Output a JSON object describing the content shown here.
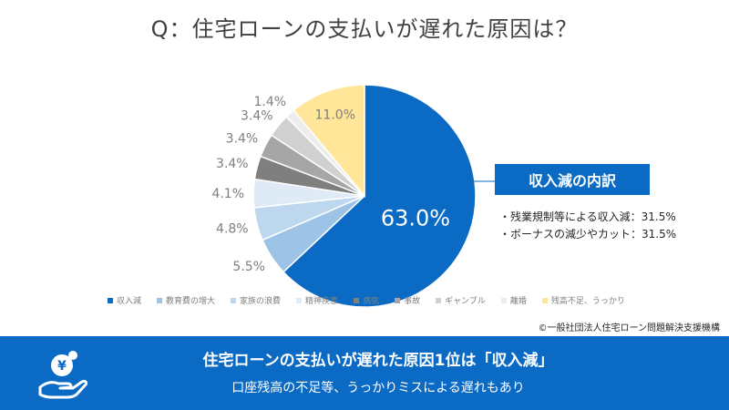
{
  "title": "Q：住宅ローンの支払いが遅れた原因は？",
  "chart_data": {
    "type": "pie",
    "title": "Q：住宅ローンの支払いが遅れた原因は？",
    "categories": [
      "収入減",
      "教育費の増大",
      "家族の浪費",
      "精神疾患",
      "病気",
      "事故",
      "ギャンブル",
      "離婚",
      "残高不足、うっかり"
    ],
    "values": [
      63.0,
      5.5,
      4.8,
      4.1,
      3.4,
      3.4,
      3.4,
      1.4,
      11.0
    ],
    "labels": [
      "63.0%",
      "5.5%",
      "4.8%",
      "4.1%",
      "3.4%",
      "3.4%",
      "3.4%",
      "1.4%",
      "11.0%"
    ],
    "colors": [
      "#0b6bc4",
      "#9dc3e6",
      "#bdd7ee",
      "#deebf7",
      "#7f7f7f",
      "#a6a6a6",
      "#d0d0d0",
      "#ededed",
      "#ffe699"
    ],
    "legend_position": "bottom"
  },
  "callout": {
    "heading": "収入減の内訳",
    "items": [
      "・残業規制等による収入減：31.5%",
      "・ボーナスの減少やカット：31.5%"
    ]
  },
  "credit": "©一般社団法人住宅ローン問題解決支援機構",
  "banner": {
    "headline": "住宅ローンの支払いが遅れた原因1位は「収入減」",
    "sub": "口座残高の不足等、うっかりミスによる遅れもあり",
    "icon_symbol": "¥",
    "icon_color": "#ffffff"
  }
}
